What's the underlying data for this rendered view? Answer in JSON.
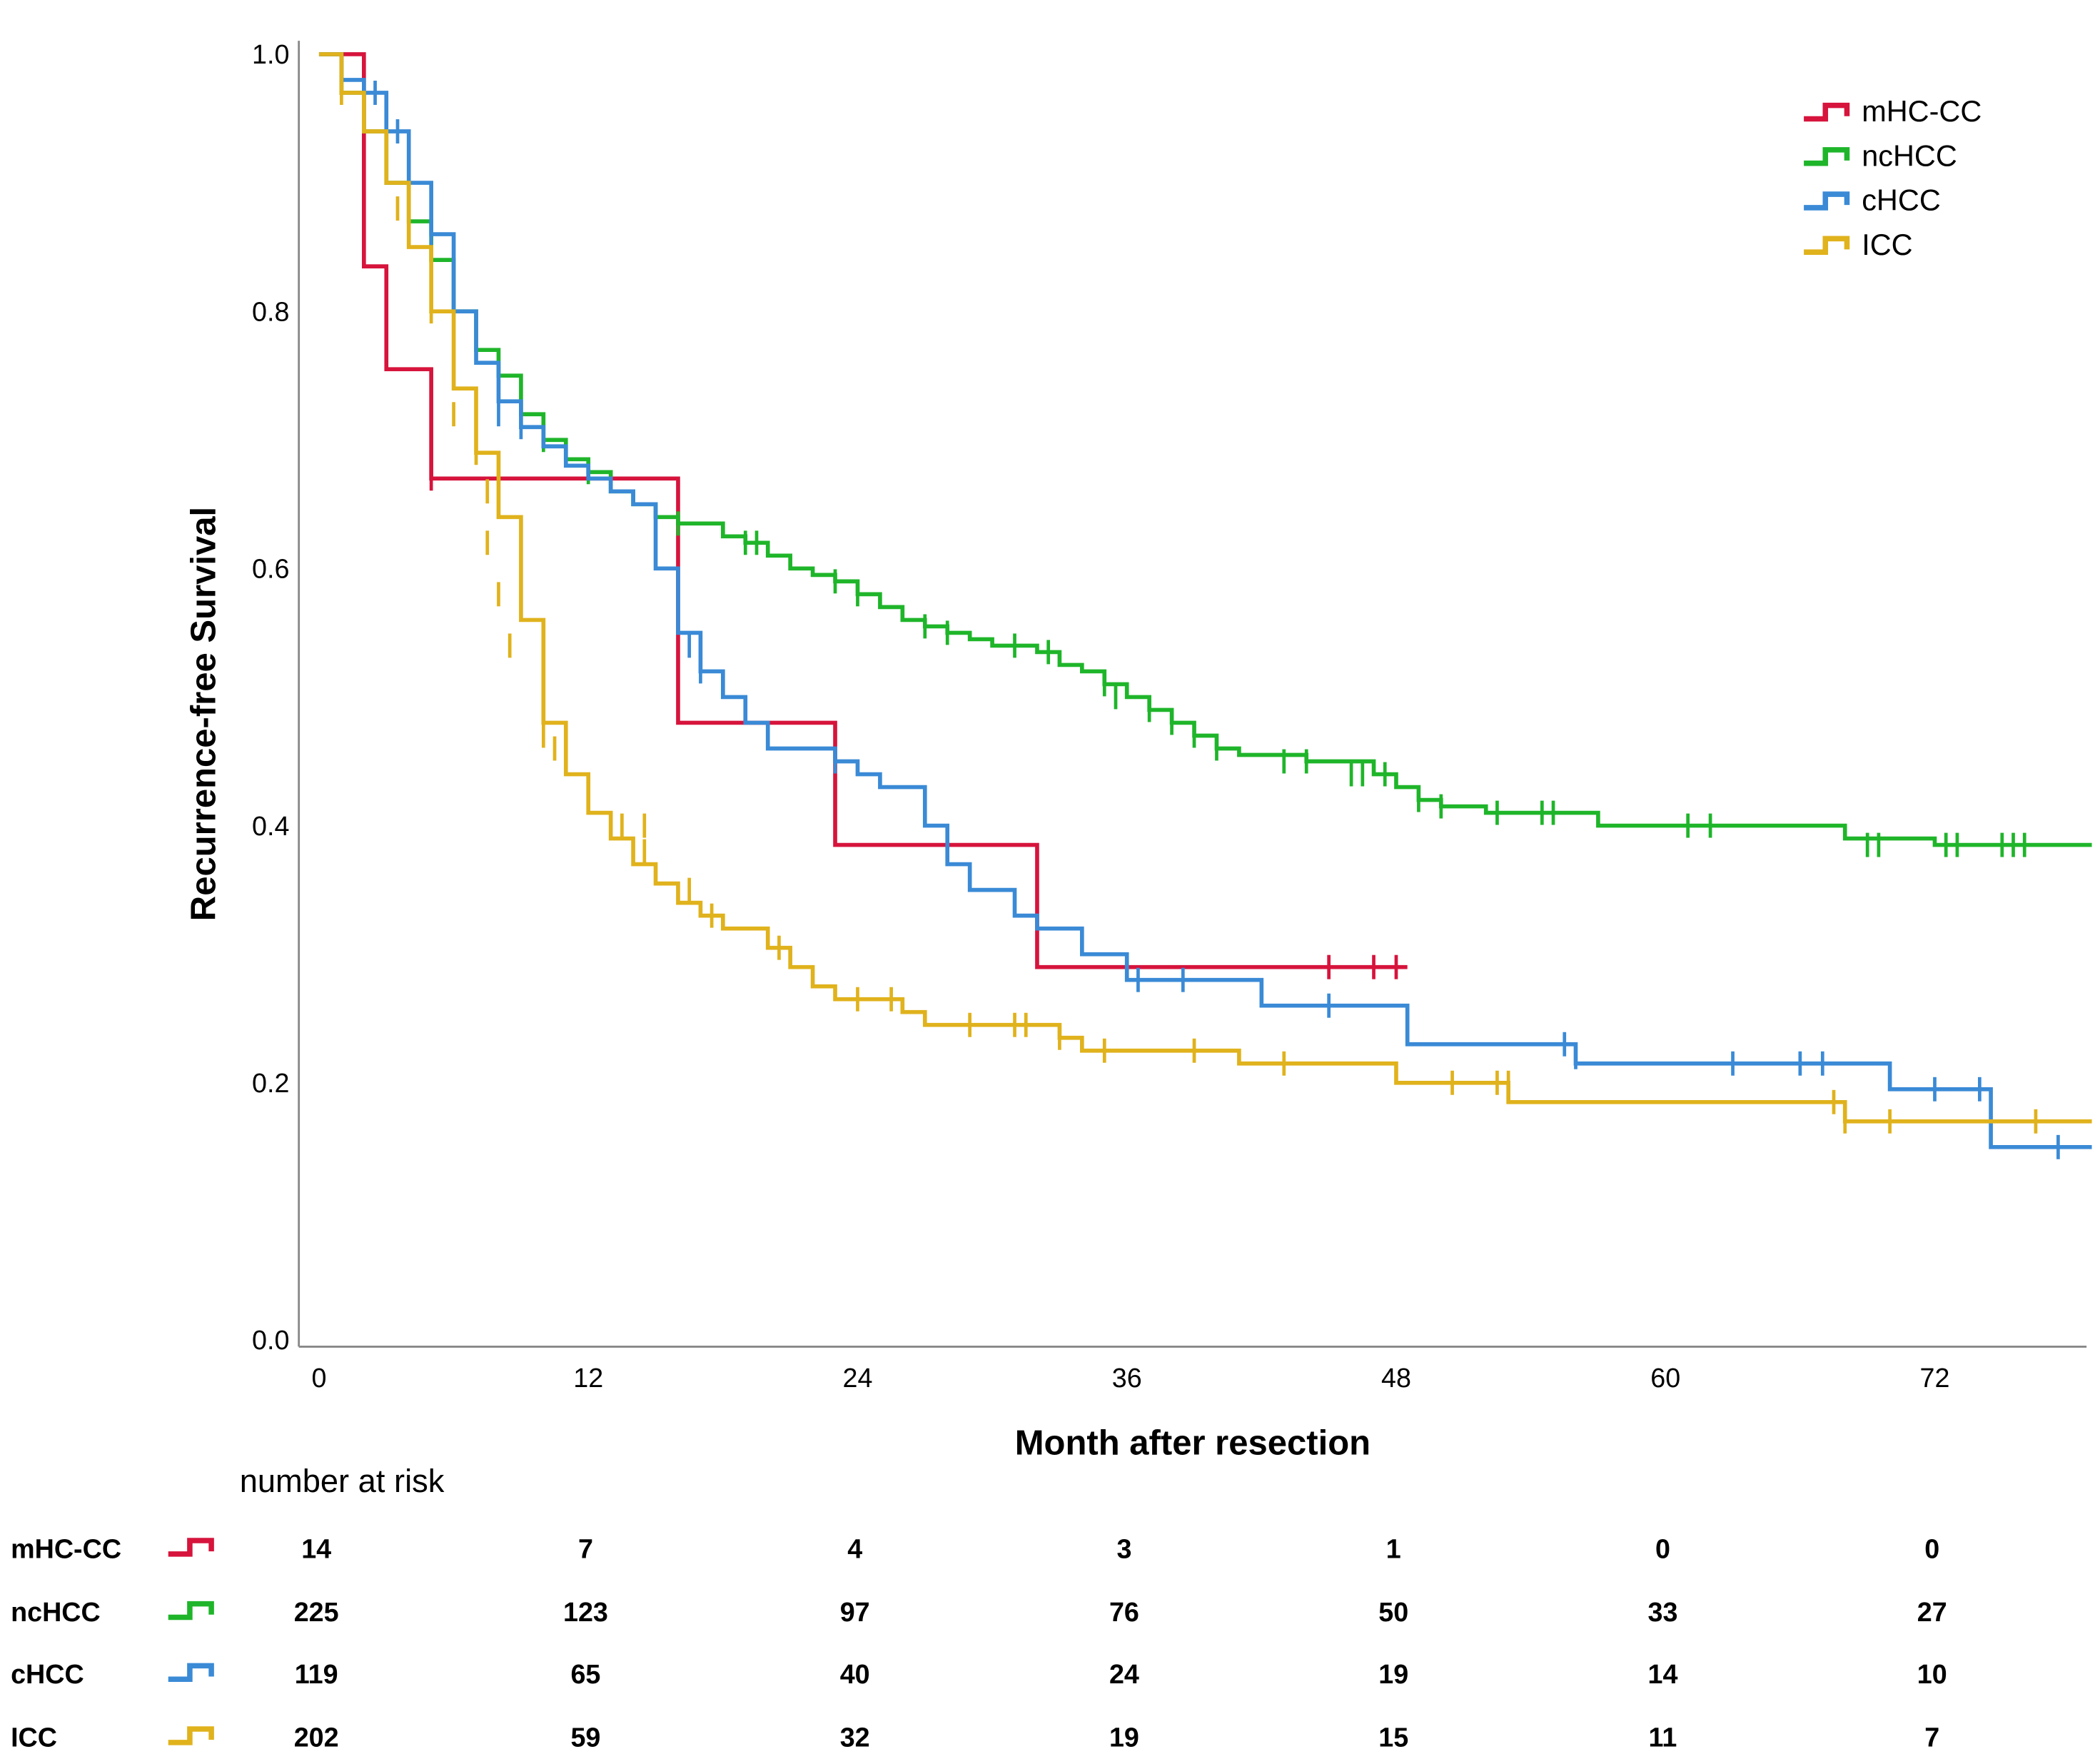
{
  "chart_data": {
    "type": "line",
    "subtype": "kaplan-meier step",
    "xlabel": "Month after resection",
    "ylabel": "Recurrence-free Survival",
    "xlim": [
      0,
      79
    ],
    "ylim": [
      0,
      1
    ],
    "xticks": [
      0,
      12,
      24,
      36,
      48,
      60,
      72
    ],
    "yticks": [
      "0.0",
      "0.2",
      "0.4",
      "0.6",
      "0.8",
      "1.0"
    ],
    "legend_position": "top-right",
    "series": [
      {
        "name": "mHC-CC",
        "color": "#d6143c",
        "steps": [
          [
            0,
            1
          ],
          [
            2,
            0.835
          ],
          [
            3,
            0.755
          ],
          [
            5,
            0.67
          ],
          [
            16,
            0.48
          ],
          [
            23,
            0.385
          ],
          [
            32,
            0.29
          ],
          [
            48.5,
            0.29
          ]
        ],
        "censored": [
          [
            5,
            0.67
          ],
          [
            45,
            0.29
          ],
          [
            47,
            0.29
          ],
          [
            48,
            0.29
          ]
        ]
      },
      {
        "name": "ncHCC",
        "color": "#1fb52a",
        "steps": [
          [
            0,
            1
          ],
          [
            1,
            0.97
          ],
          [
            2,
            0.94
          ],
          [
            3,
            0.9
          ],
          [
            4,
            0.87
          ],
          [
            5,
            0.84
          ],
          [
            6,
            0.8
          ],
          [
            7,
            0.77
          ],
          [
            8,
            0.75
          ],
          [
            9,
            0.72
          ],
          [
            10,
            0.7
          ],
          [
            11,
            0.685
          ],
          [
            12,
            0.675
          ],
          [
            13,
            0.66
          ],
          [
            14,
            0.65
          ],
          [
            15,
            0.64
          ],
          [
            16,
            0.635
          ],
          [
            18,
            0.625
          ],
          [
            19,
            0.62
          ],
          [
            20,
            0.61
          ],
          [
            21,
            0.6
          ],
          [
            22,
            0.595
          ],
          [
            23,
            0.59
          ],
          [
            24,
            0.58
          ],
          [
            25,
            0.57
          ],
          [
            26,
            0.56
          ],
          [
            27,
            0.555
          ],
          [
            28,
            0.55
          ],
          [
            29,
            0.545
          ],
          [
            30,
            0.54
          ],
          [
            32,
            0.535
          ],
          [
            33,
            0.525
          ],
          [
            34,
            0.52
          ],
          [
            35,
            0.51
          ],
          [
            36,
            0.5
          ],
          [
            37,
            0.49
          ],
          [
            38,
            0.48
          ],
          [
            39,
            0.47
          ],
          [
            40,
            0.46
          ],
          [
            41,
            0.455
          ],
          [
            44,
            0.45
          ],
          [
            47,
            0.44
          ],
          [
            48,
            0.43
          ],
          [
            49,
            0.42
          ],
          [
            50,
            0.415
          ],
          [
            52,
            0.41
          ],
          [
            57,
            0.4
          ],
          [
            68,
            0.39
          ],
          [
            72,
            0.385
          ],
          [
            79,
            0.385
          ]
        ],
        "censored": [
          [
            4,
            0.87
          ],
          [
            6,
            0.8
          ],
          [
            10,
            0.7
          ],
          [
            12,
            0.675
          ],
          [
            16,
            0.635
          ],
          [
            19,
            0.62
          ],
          [
            19.5,
            0.62
          ],
          [
            23,
            0.59
          ],
          [
            24,
            0.58
          ],
          [
            27,
            0.555
          ],
          [
            28,
            0.55
          ],
          [
            31,
            0.54
          ],
          [
            32.5,
            0.535
          ],
          [
            35,
            0.51
          ],
          [
            35.5,
            0.5
          ],
          [
            37,
            0.49
          ],
          [
            38,
            0.48
          ],
          [
            39,
            0.47
          ],
          [
            40,
            0.46
          ],
          [
            43,
            0.45
          ],
          [
            44,
            0.45
          ],
          [
            46,
            0.44
          ],
          [
            46.5,
            0.44
          ],
          [
            47.5,
            0.44
          ],
          [
            49,
            0.42
          ],
          [
            50,
            0.415
          ],
          [
            52.5,
            0.41
          ],
          [
            54.5,
            0.41
          ],
          [
            55,
            0.41
          ],
          [
            61,
            0.4
          ],
          [
            62,
            0.4
          ],
          [
            69,
            0.385
          ],
          [
            69.5,
            0.385
          ],
          [
            72.5,
            0.385
          ],
          [
            73,
            0.385
          ],
          [
            75,
            0.385
          ],
          [
            75.5,
            0.385
          ],
          [
            76,
            0.385
          ]
        ]
      },
      {
        "name": "cHCC",
        "color": "#3a8ad6",
        "steps": [
          [
            0,
            1
          ],
          [
            1,
            0.98
          ],
          [
            2,
            0.97
          ],
          [
            3,
            0.94
          ],
          [
            4,
            0.9
          ],
          [
            5,
            0.86
          ],
          [
            6,
            0.8
          ],
          [
            7,
            0.76
          ],
          [
            8,
            0.73
          ],
          [
            9,
            0.71
          ],
          [
            10,
            0.695
          ],
          [
            11,
            0.68
          ],
          [
            12,
            0.67
          ],
          [
            13,
            0.66
          ],
          [
            14,
            0.65
          ],
          [
            15,
            0.6
          ],
          [
            16,
            0.55
          ],
          [
            17,
            0.52
          ],
          [
            18,
            0.5
          ],
          [
            19,
            0.48
          ],
          [
            20,
            0.46
          ],
          [
            23,
            0.45
          ],
          [
            24,
            0.44
          ],
          [
            25,
            0.43
          ],
          [
            27,
            0.4
          ],
          [
            28,
            0.37
          ],
          [
            29,
            0.35
          ],
          [
            31,
            0.33
          ],
          [
            32,
            0.32
          ],
          [
            34,
            0.3
          ],
          [
            36,
            0.28
          ],
          [
            42,
            0.26
          ],
          [
            48.5,
            0.23
          ],
          [
            56,
            0.215
          ],
          [
            70,
            0.195
          ],
          [
            74.5,
            0.15
          ],
          [
            79,
            0.15
          ]
        ],
        "censored": [
          [
            1,
            0.98
          ],
          [
            2.5,
            0.97
          ],
          [
            3.5,
            0.94
          ],
          [
            5,
            0.86
          ],
          [
            6,
            0.77
          ],
          [
            8,
            0.72
          ],
          [
            9,
            0.71
          ],
          [
            16.5,
            0.54
          ],
          [
            17,
            0.52
          ],
          [
            23,
            0.45
          ],
          [
            36.5,
            0.28
          ],
          [
            38.5,
            0.28
          ],
          [
            45,
            0.26
          ],
          [
            55.5,
            0.23
          ],
          [
            56,
            0.22
          ],
          [
            63,
            0.215
          ],
          [
            66,
            0.215
          ],
          [
            67,
            0.215
          ],
          [
            72,
            0.195
          ],
          [
            74,
            0.195
          ],
          [
            77.5,
            0.15
          ]
        ]
      },
      {
        "name": "ICC",
        "color": "#e0b21c",
        "steps": [
          [
            0,
            1
          ],
          [
            1,
            0.97
          ],
          [
            2,
            0.94
          ],
          [
            3,
            0.9
          ],
          [
            4,
            0.85
          ],
          [
            5,
            0.8
          ],
          [
            6,
            0.74
          ],
          [
            7,
            0.69
          ],
          [
            8,
            0.64
          ],
          [
            9,
            0.56
          ],
          [
            10,
            0.48
          ],
          [
            11,
            0.44
          ],
          [
            12,
            0.41
          ],
          [
            13,
            0.39
          ],
          [
            14,
            0.37
          ],
          [
            15,
            0.355
          ],
          [
            16,
            0.34
          ],
          [
            17,
            0.33
          ],
          [
            18,
            0.32
          ],
          [
            20,
            0.305
          ],
          [
            21,
            0.29
          ],
          [
            22,
            0.275
          ],
          [
            23,
            0.265
          ],
          [
            26,
            0.255
          ],
          [
            27,
            0.245
          ],
          [
            33,
            0.235
          ],
          [
            34,
            0.225
          ],
          [
            41,
            0.215
          ],
          [
            48,
            0.2
          ],
          [
            53,
            0.185
          ],
          [
            68,
            0.17
          ],
          [
            79,
            0.17
          ]
        ],
        "censored": [
          [
            1,
            0.97
          ],
          [
            3.5,
            0.88
          ],
          [
            5,
            0.8
          ],
          [
            6,
            0.72
          ],
          [
            7,
            0.69
          ],
          [
            7.5,
            0.66
          ],
          [
            7.5,
            0.62
          ],
          [
            8,
            0.58
          ],
          [
            8.5,
            0.54
          ],
          [
            10,
            0.47
          ],
          [
            10.5,
            0.46
          ],
          [
            13.5,
            0.4
          ],
          [
            14.5,
            0.4
          ],
          [
            14.5,
            0.38
          ],
          [
            16.5,
            0.35
          ],
          [
            17.5,
            0.33
          ],
          [
            20.5,
            0.305
          ],
          [
            24,
            0.265
          ],
          [
            25.5,
            0.265
          ],
          [
            29,
            0.245
          ],
          [
            31,
            0.245
          ],
          [
            31.5,
            0.245
          ],
          [
            33,
            0.235
          ],
          [
            35,
            0.225
          ],
          [
            39,
            0.225
          ],
          [
            43,
            0.215
          ],
          [
            50.5,
            0.2
          ],
          [
            52.5,
            0.2
          ],
          [
            53,
            0.2
          ],
          [
            67.5,
            0.185
          ],
          [
            68,
            0.17
          ],
          [
            70,
            0.17
          ],
          [
            76.5,
            0.17
          ]
        ]
      }
    ],
    "number_at_risk": {
      "title": "number at risk",
      "times": [
        0,
        12,
        24,
        36,
        48,
        60,
        72
      ],
      "rows": [
        {
          "name": "mHC-CC",
          "values": [
            14,
            7,
            4,
            3,
            1,
            0,
            0
          ]
        },
        {
          "name": "ncHCC",
          "values": [
            225,
            123,
            97,
            76,
            50,
            33,
            27
          ]
        },
        {
          "name": "cHCC",
          "values": [
            119,
            65,
            40,
            24,
            19,
            14,
            10
          ]
        },
        {
          "name": "ICC",
          "values": [
            202,
            59,
            32,
            19,
            15,
            11,
            7
          ]
        }
      ]
    }
  }
}
